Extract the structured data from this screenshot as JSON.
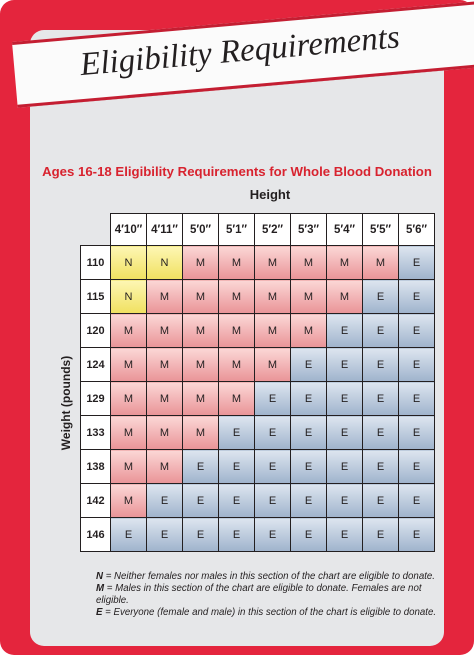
{
  "title": "Eligibility Requirements",
  "subtitle": "Ages 16-18 Eligibility Requirements for Whole Blood Donation",
  "column_axis_label": "Height",
  "row_axis_label": "Weight (pounds)",
  "colors": {
    "frame": "#e4253d",
    "panel": "#e6e7e9",
    "N": "#f0e060",
    "M": "#e99497",
    "E": "#9fb3cc"
  },
  "chart_data": {
    "type": "table",
    "columns": [
      "4′10″",
      "4′11″",
      "5′0″",
      "5′1″",
      "5′2″",
      "5′3″",
      "5′4″",
      "5′5″",
      "5′6″"
    ],
    "rows": [
      {
        "weight": "110",
        "cells": [
          "N",
          "N",
          "M",
          "M",
          "M",
          "M",
          "M",
          "M",
          "E"
        ]
      },
      {
        "weight": "115",
        "cells": [
          "N",
          "M",
          "M",
          "M",
          "M",
          "M",
          "M",
          "E",
          "E"
        ]
      },
      {
        "weight": "120",
        "cells": [
          "M",
          "M",
          "M",
          "M",
          "M",
          "M",
          "E",
          "E",
          "E"
        ]
      },
      {
        "weight": "124",
        "cells": [
          "M",
          "M",
          "M",
          "M",
          "M",
          "E",
          "E",
          "E",
          "E"
        ]
      },
      {
        "weight": "129",
        "cells": [
          "M",
          "M",
          "M",
          "M",
          "E",
          "E",
          "E",
          "E",
          "E"
        ]
      },
      {
        "weight": "133",
        "cells": [
          "M",
          "M",
          "M",
          "E",
          "E",
          "E",
          "E",
          "E",
          "E"
        ]
      },
      {
        "weight": "138",
        "cells": [
          "M",
          "M",
          "E",
          "E",
          "E",
          "E",
          "E",
          "E",
          "E"
        ]
      },
      {
        "weight": "142",
        "cells": [
          "M",
          "E",
          "E",
          "E",
          "E",
          "E",
          "E",
          "E",
          "E"
        ]
      },
      {
        "weight": "146",
        "cells": [
          "E",
          "E",
          "E",
          "E",
          "E",
          "E",
          "E",
          "E",
          "E"
        ]
      }
    ]
  },
  "legend": [
    {
      "code": "N",
      "text": " = Neither females nor males in this section of the chart are eligible to donate."
    },
    {
      "code": "M",
      "text": " = Males in this section of the chart are eligible to donate. Females are not eligible."
    },
    {
      "code": "E",
      "text": " = Everyone (female and male) in this section of the chart is eligible to donate."
    }
  ]
}
